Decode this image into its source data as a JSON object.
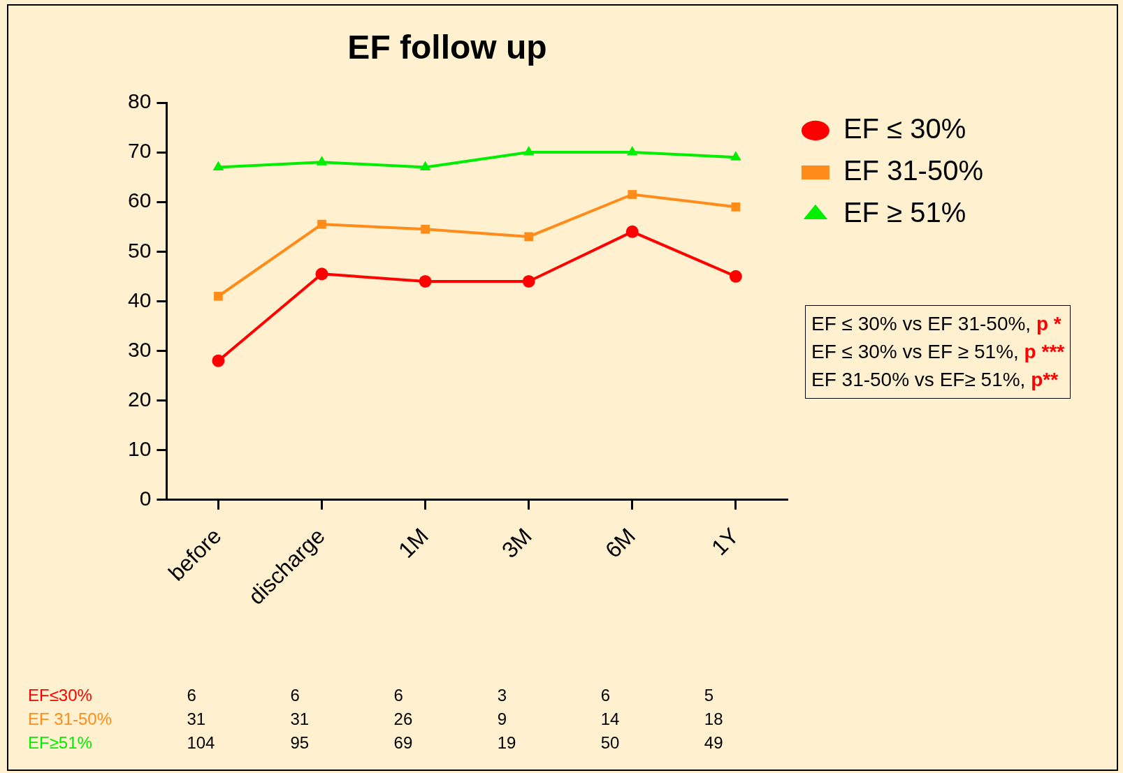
{
  "chart_data": {
    "type": "line",
    "title": "EF follow up",
    "categories": [
      "before",
      "discharge",
      "1M",
      "3M",
      "6M",
      "1Y"
    ],
    "series": [
      {
        "name": "EF ≤ 30%",
        "color": "#ff0000",
        "marker": "circle",
        "values": [
          28,
          45.5,
          44,
          44,
          54,
          45
        ]
      },
      {
        "name": "EF 31-50%",
        "color": "#ff8c1a",
        "marker": "square",
        "values": [
          41,
          55.5,
          54.5,
          53,
          61.5,
          59
        ]
      },
      {
        "name": "EF ≥ 51%",
        "color": "#00ee00",
        "marker": "triangle",
        "values": [
          67,
          68,
          67,
          70,
          70,
          69
        ]
      }
    ],
    "ylim": [
      0,
      80
    ],
    "yticks": [
      0,
      10,
      20,
      30,
      40,
      50,
      60,
      70,
      80
    ],
    "grid": false,
    "legend": "top right",
    "line_style": "solid",
    "annotations": [
      "EF ≤ 30% vs EF 31-50%, p *",
      "EF ≤ 30% vs EF ≥ 51%, p ***",
      "EF 31-50% vs EF≥ 51%, p**",
      "EF≤30%",
      "EF 31-50%",
      "EF≥51%",
      "6",
      "6",
      "6",
      "3",
      "6",
      "5",
      "31",
      "31",
      "26",
      "9",
      "14",
      "18",
      "104",
      "95",
      "69",
      "19",
      "50",
      "49"
    ]
  }
}
